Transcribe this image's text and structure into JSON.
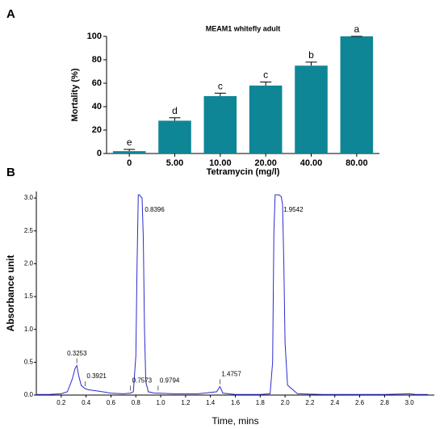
{
  "chart_data": [
    {
      "type": "bar",
      "panel": "A",
      "title": "MEAM1  whitefly adult",
      "categories": [
        "0",
        "5.00",
        "10.00",
        "20.00",
        "40.00",
        "80.00"
      ],
      "values": [
        2,
        28,
        49,
        58,
        75,
        100
      ],
      "errors": [
        1.5,
        2.5,
        2.5,
        3,
        3,
        0
      ],
      "letters": [
        "e",
        "d",
        "c",
        "c",
        "b",
        "a"
      ],
      "color": "#0e8696",
      "xlabel": "Tetramycin (mg/l)",
      "ylabel": "Mortality (%)",
      "ylim": [
        0,
        100
      ],
      "yticks": [
        0,
        20,
        40,
        60,
        80,
        100
      ]
    },
    {
      "type": "line",
      "panel": "B",
      "xlabel": "Time, mins",
      "ylabel": "Absorbance unit",
      "color": "#2b2bd0",
      "x": [
        0,
        0.1,
        0.2,
        0.25,
        0.29,
        0.31,
        0.325,
        0.34,
        0.36,
        0.39,
        0.42,
        0.5,
        0.6,
        0.7,
        0.757,
        0.78,
        0.8,
        0.81,
        0.82,
        0.83,
        0.84,
        0.85,
        0.86,
        0.87,
        0.88,
        0.9,
        0.95,
        0.98,
        1.1,
        1.3,
        1.45,
        1.476,
        1.5,
        1.6,
        1.8,
        1.88,
        1.9,
        1.91,
        1.92,
        1.95,
        1.97,
        1.98,
        1.99,
        2.0,
        2.02,
        2.1,
        2.3,
        2.5,
        2.8,
        3.0,
        3.05,
        3.15
      ],
      "values": [
        0.01,
        0.01,
        0.02,
        0.05,
        0.25,
        0.4,
        0.45,
        0.3,
        0.15,
        0.1,
        0.08,
        0.06,
        0.03,
        0.02,
        0.03,
        0.05,
        0.6,
        2.0,
        3.05,
        3.05,
        3.02,
        3.0,
        2.4,
        1.0,
        0.2,
        0.05,
        0.03,
        0.03,
        0.02,
        0.02,
        0.05,
        0.13,
        0.03,
        0.01,
        0.01,
        0.02,
        0.5,
        2.5,
        3.05,
        3.05,
        3.02,
        2.9,
        2.0,
        0.8,
        0.15,
        0.02,
        0.01,
        0.01,
        0.01,
        0.02,
        0.01,
        0.01
      ],
      "annotations": [
        {
          "text": "0.3253",
          "x": 0.3253
        },
        {
          "text": "0.3921",
          "x": 0.3921
        },
        {
          "text": "0.7573",
          "x": 0.7573
        },
        {
          "text": "0.8396",
          "x": 0.8396
        },
        {
          "text": "0.9794",
          "x": 0.9794
        },
        {
          "text": "1.4757",
          "x": 1.4757
        },
        {
          "text": "1.9542",
          "x": 1.9542
        }
      ],
      "xlim": [
        0,
        3.2
      ],
      "xticks": [
        0.2,
        0.4,
        0.6,
        0.8,
        {
          "value": 1,
          "label": "1.0"
        },
        1.2,
        1.4,
        1.6,
        1.8,
        {
          "value": 2,
          "label": "2.0"
        },
        2.2,
        2.4,
        2.6,
        2.8,
        {
          "value": 3,
          "label": "3.0"
        }
      ],
      "ylim": [
        0,
        3.1
      ],
      "yticks": [
        {
          "value": 0,
          "label": "0.0"
        },
        0.5,
        {
          "value": 1,
          "label": "1.0"
        },
        1.5,
        {
          "value": 2,
          "label": "2.0"
        },
        2.5,
        {
          "value": 3,
          "label": "3.0"
        }
      ]
    }
  ]
}
